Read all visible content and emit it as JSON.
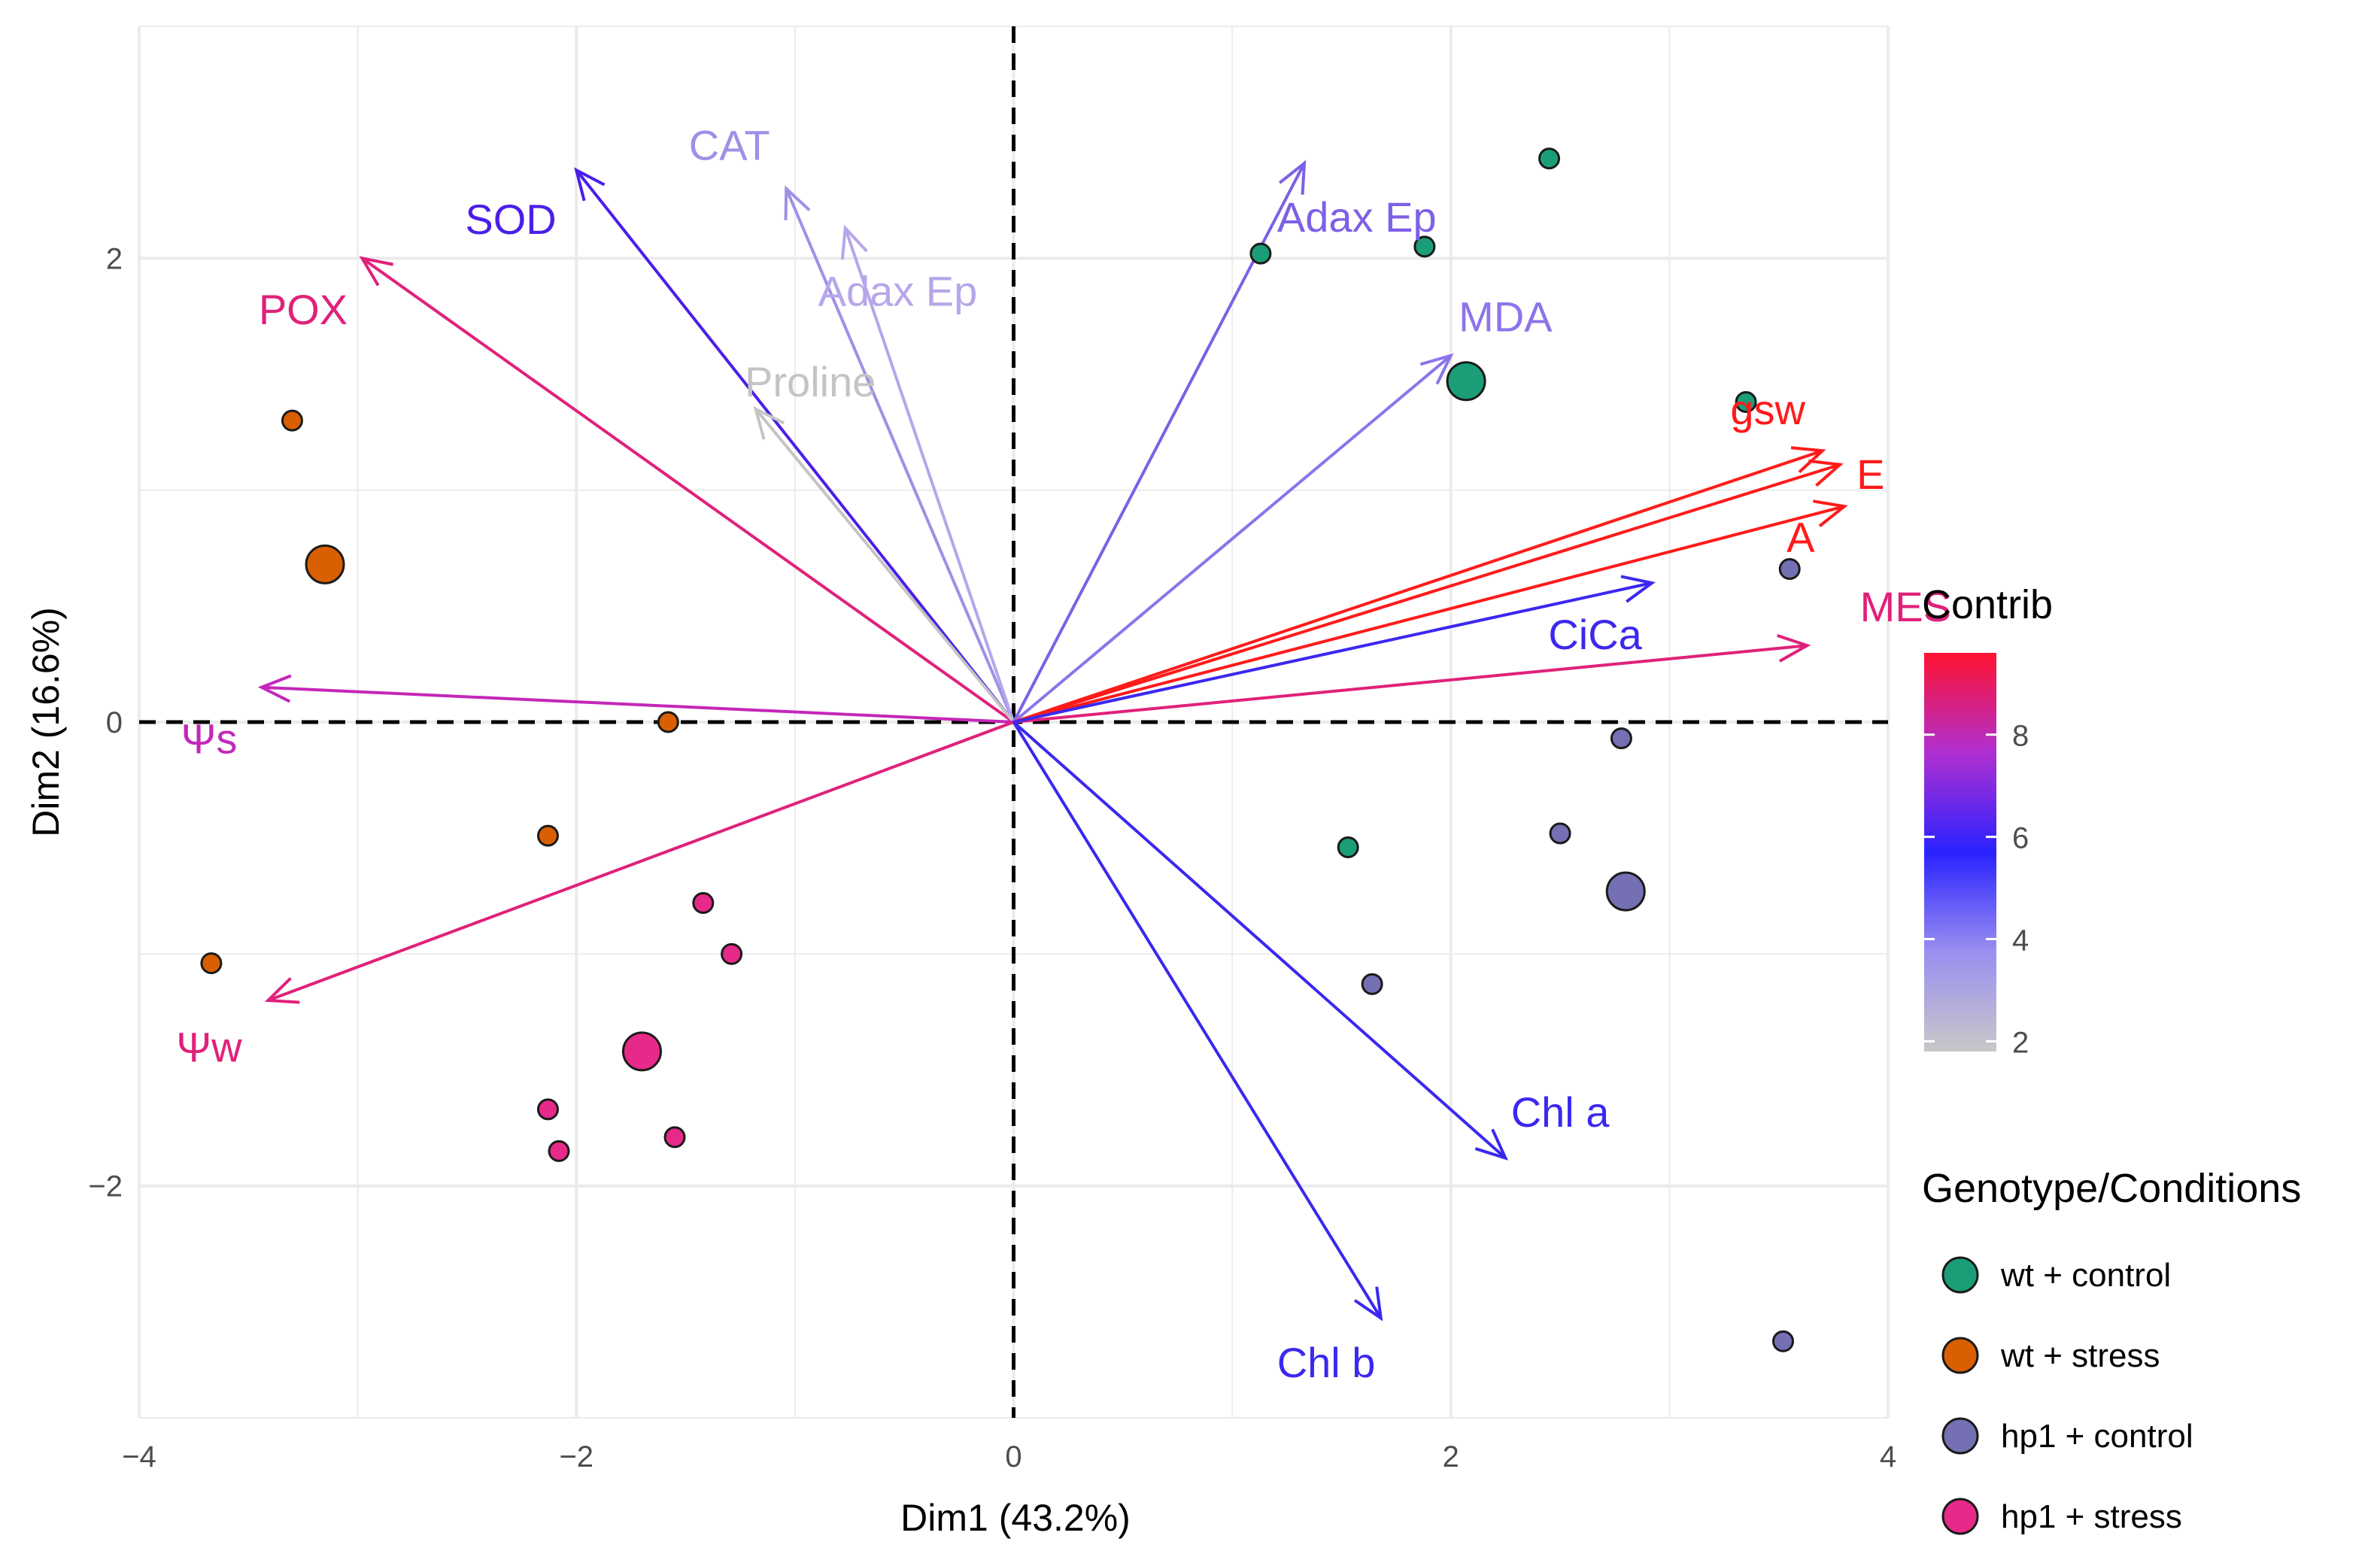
{
  "chart_data": {
    "type": "scatter",
    "subtype": "pca-biplot",
    "xlabel": "Dim1 (43.2%)",
    "ylabel": "Dim2 (16.6%)",
    "xlim": [
      -4.0,
      4.0
    ],
    "ylim": [
      -3.0,
      3.0
    ],
    "x_ticks": [
      {
        "value": -4,
        "label": "−4"
      },
      {
        "value": -2,
        "label": "−2"
      },
      {
        "value": 0,
        "label": "0"
      },
      {
        "value": 2,
        "label": "2"
      },
      {
        "value": 4,
        "label": "4"
      }
    ],
    "y_ticks": [
      {
        "value": -2,
        "label": "−2"
      },
      {
        "value": 0,
        "label": "0"
      },
      {
        "value": 2,
        "label": "2"
      }
    ],
    "grid": true,
    "variables": [
      {
        "name": "POX",
        "x": -2.98,
        "y": 2.0,
        "contrib": 8.2,
        "color": "#e0217a",
        "lx": -3.25,
        "ly": 1.78
      },
      {
        "name": "SOD",
        "x": -2.0,
        "y": 2.38,
        "contrib": 6.2,
        "color": "#4a1ee8",
        "lx": -2.3,
        "ly": 2.17
      },
      {
        "name": "CAT",
        "x": -1.04,
        "y": 2.3,
        "contrib": 3.8,
        "color": "#a08fe6",
        "lx": -1.3,
        "ly": 2.49
      },
      {
        "name": "Adax Ep",
        "x": -0.77,
        "y": 2.13,
        "contrib": 3.3,
        "color": "#b7a6ea",
        "lx": -0.53,
        "ly": 1.86
      },
      {
        "name": "Proline",
        "x": -1.18,
        "y": 1.35,
        "contrib": 2.2,
        "color": "#c4c4c4",
        "lx": -0.93,
        "ly": 1.47
      },
      {
        "name": "Adax Ep",
        "x": 1.33,
        "y": 2.41,
        "contrib": 4.6,
        "color": "#7d60e6",
        "lx": 1.57,
        "ly": 2.18
      },
      {
        "name": "MDA",
        "x": 2.0,
        "y": 1.58,
        "contrib": 4.1,
        "color": "#8d74ea",
        "lx": 2.25,
        "ly": 1.75
      },
      {
        "name": "gsw",
        "x": 3.7,
        "y": 1.17,
        "contrib": 9.1,
        "color": "#ff1a1a",
        "lx": 3.45,
        "ly": 1.35
      },
      {
        "name": "E",
        "x": 3.78,
        "y": 1.11,
        "contrib": 9.2,
        "color": "#ff1a1a",
        "lx": 3.92,
        "ly": 1.07
      },
      {
        "name": "A",
        "x": 3.8,
        "y": 0.93,
        "contrib": 9.0,
        "color": "#ff1a1a",
        "lx": 3.6,
        "ly": 0.8
      },
      {
        "name": "MES",
        "x": 3.63,
        "y": 0.33,
        "contrib": 8.1,
        "color": "#e0217a",
        "lx": 4.08,
        "ly": 0.5
      },
      {
        "name": "CiCa",
        "x": 2.92,
        "y": 0.6,
        "contrib": 5.9,
        "color": "#3b28ef",
        "lx": 2.66,
        "ly": 0.38
      },
      {
        "name": "Ψs",
        "x": -3.44,
        "y": 0.15,
        "contrib": 7.4,
        "color": "#c427b8",
        "lx": -3.68,
        "ly": -0.07
      },
      {
        "name": "Ψw",
        "x": -3.41,
        "y": -1.2,
        "contrib": 8.0,
        "color": "#e0217a",
        "lx": -3.68,
        "ly": -1.4
      },
      {
        "name": "Chl a",
        "x": 2.25,
        "y": -1.88,
        "contrib": 6.0,
        "color": "#3b28ef",
        "lx": 2.5,
        "ly": -1.68
      },
      {
        "name": "Chl b",
        "x": 1.68,
        "y": -2.57,
        "contrib": 6.0,
        "color": "#3b28ef",
        "lx": 1.43,
        "ly": -2.76
      }
    ],
    "contrib_scale": {
      "title": "Contrib",
      "min": 1.8,
      "max": 9.6,
      "ticks": [
        2,
        4,
        6,
        8
      ],
      "colors": [
        "#c8c8c8",
        "#9a8ff0",
        "#2a22ff",
        "#b02fd0",
        "#ff1230"
      ]
    },
    "groups": [
      {
        "name": "wt + control",
        "color": "#1b9e77"
      },
      {
        "name": "wt + stress",
        "color": "#d95f02"
      },
      {
        "name": "hp1 + control",
        "color": "#7570b3"
      },
      {
        "name": "hp1 + stress",
        "color": "#e7298a"
      }
    ],
    "legend_title": "Genotype/Conditions",
    "points": [
      {
        "x": 2.45,
        "y": 2.43,
        "group": 0,
        "size": "small"
      },
      {
        "x": 1.88,
        "y": 2.05,
        "group": 0,
        "size": "small"
      },
      {
        "x": 1.13,
        "y": 2.02,
        "group": 0,
        "size": "small"
      },
      {
        "x": 2.07,
        "y": 1.47,
        "group": 0,
        "size": "large"
      },
      {
        "x": 3.35,
        "y": 1.38,
        "group": 0,
        "size": "small"
      },
      {
        "x": 1.53,
        "y": -0.54,
        "group": 0,
        "size": "small"
      },
      {
        "x": -3.3,
        "y": 1.3,
        "group": 1,
        "size": "small"
      },
      {
        "x": -3.15,
        "y": 0.68,
        "group": 1,
        "size": "large"
      },
      {
        "x": -1.58,
        "y": 0.0,
        "group": 1,
        "size": "small"
      },
      {
        "x": -2.13,
        "y": -0.49,
        "group": 1,
        "size": "small"
      },
      {
        "x": -3.67,
        "y": -1.04,
        "group": 1,
        "size": "small"
      },
      {
        "x": 3.55,
        "y": 0.66,
        "group": 2,
        "size": "small"
      },
      {
        "x": 2.78,
        "y": -0.07,
        "group": 2,
        "size": "small"
      },
      {
        "x": 2.5,
        "y": -0.48,
        "group": 2,
        "size": "small"
      },
      {
        "x": 2.8,
        "y": -0.73,
        "group": 2,
        "size": "large"
      },
      {
        "x": 1.64,
        "y": -1.13,
        "group": 2,
        "size": "small"
      },
      {
        "x": 3.52,
        "y": -2.67,
        "group": 2,
        "size": "small"
      },
      {
        "x": -1.42,
        "y": -0.78,
        "group": 3,
        "size": "small"
      },
      {
        "x": -1.29,
        "y": -1.0,
        "group": 3,
        "size": "small"
      },
      {
        "x": -1.7,
        "y": -1.42,
        "group": 3,
        "size": "large"
      },
      {
        "x": -2.13,
        "y": -1.67,
        "group": 3,
        "size": "small"
      },
      {
        "x": -2.08,
        "y": -1.85,
        "group": 3,
        "size": "small"
      },
      {
        "x": -1.55,
        "y": -1.79,
        "group": 3,
        "size": "small"
      }
    ]
  }
}
